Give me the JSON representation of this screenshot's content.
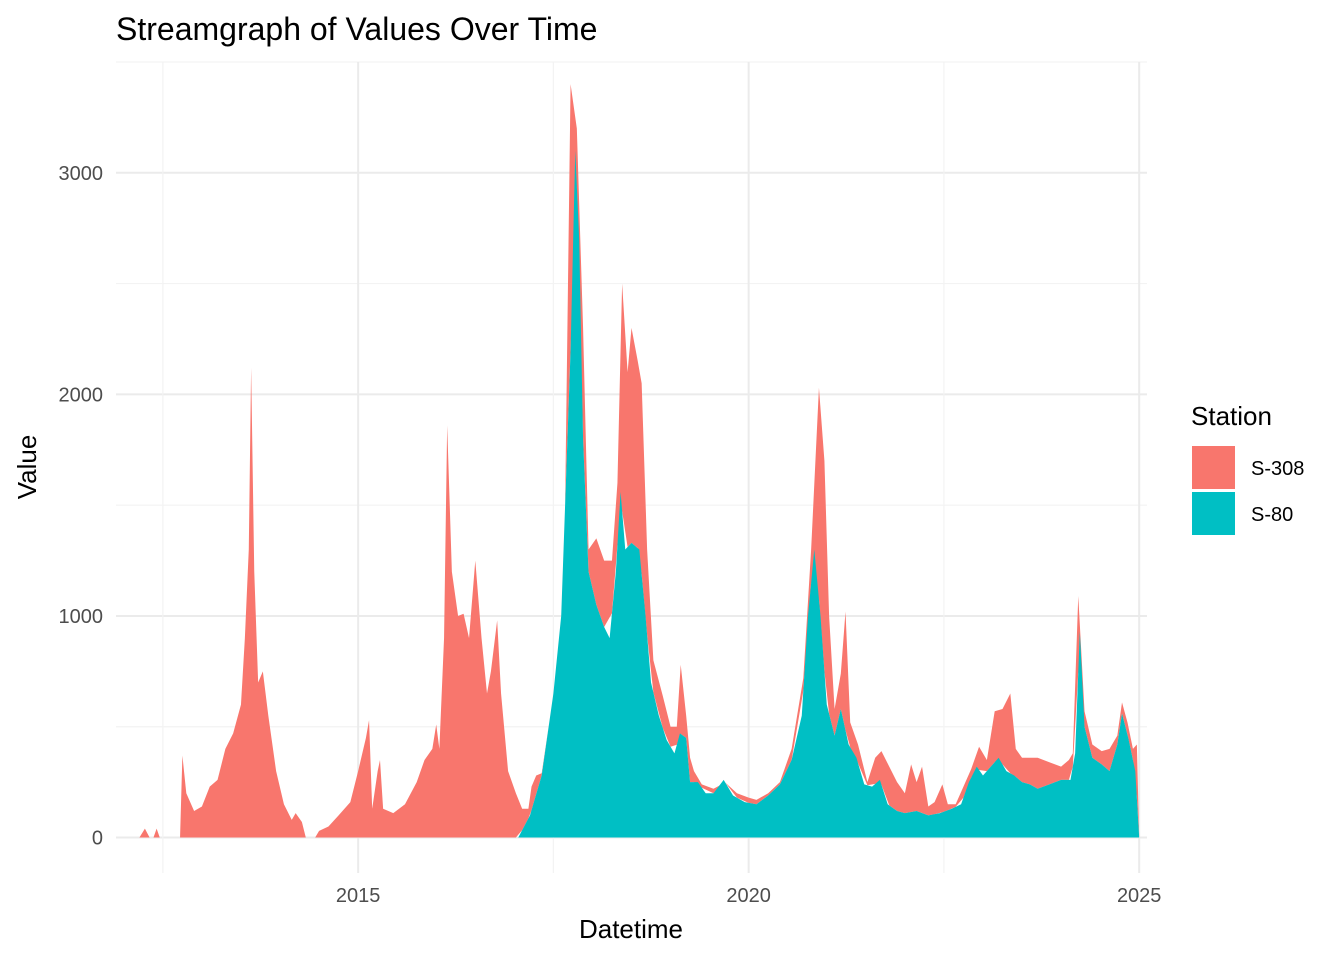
{
  "chart_data": {
    "type": "area",
    "stacked": true,
    "title": "Streamgraph of Values Over Time",
    "xlabel": "Datetime",
    "ylabel": "Value",
    "xlim": [
      2011.9,
      2025.1
    ],
    "ylim": [
      -160,
      3500
    ],
    "x_ticks": [
      2015,
      2020,
      2025
    ],
    "x_tick_labels": [
      "2015",
      "2020",
      "2025"
    ],
    "y_ticks": [
      0,
      1000,
      2000,
      3000
    ],
    "y_tick_labels": [
      "0",
      "1000",
      "2000",
      "3000"
    ],
    "grid": true,
    "legend": {
      "title": "Station",
      "position": "right"
    },
    "series": [
      {
        "name": "S-308",
        "color": "#F8766D",
        "values": [
          [
            2012.2,
            0
          ],
          [
            2012.27,
            40
          ],
          [
            2012.33,
            0
          ],
          [
            2012.38,
            0
          ],
          [
            2012.42,
            40
          ],
          [
            2012.46,
            0
          ],
          [
            2012.72,
            0
          ],
          [
            2012.75,
            370
          ],
          [
            2012.8,
            200
          ],
          [
            2012.9,
            120
          ],
          [
            2013.0,
            140
          ],
          [
            2013.1,
            230
          ],
          [
            2013.2,
            260
          ],
          [
            2013.3,
            400
          ],
          [
            2013.4,
            470
          ],
          [
            2013.5,
            600
          ],
          [
            2013.55,
            900
          ],
          [
            2013.6,
            1300
          ],
          [
            2013.63,
            2120
          ],
          [
            2013.67,
            1200
          ],
          [
            2013.72,
            700
          ],
          [
            2013.78,
            750
          ],
          [
            2013.85,
            550
          ],
          [
            2013.95,
            300
          ],
          [
            2014.05,
            150
          ],
          [
            2014.15,
            80
          ],
          [
            2014.2,
            110
          ],
          [
            2014.28,
            70
          ],
          [
            2014.33,
            0
          ],
          [
            2014.45,
            0
          ],
          [
            2014.5,
            30
          ],
          [
            2014.62,
            50
          ],
          [
            2014.75,
            100
          ],
          [
            2014.9,
            160
          ],
          [
            2015.0,
            300
          ],
          [
            2015.1,
            450
          ],
          [
            2015.14,
            530
          ],
          [
            2015.18,
            130
          ],
          [
            2015.25,
            300
          ],
          [
            2015.28,
            350
          ],
          [
            2015.32,
            130
          ],
          [
            2015.45,
            110
          ],
          [
            2015.6,
            150
          ],
          [
            2015.75,
            250
          ],
          [
            2015.85,
            350
          ],
          [
            2015.95,
            400
          ],
          [
            2016.0,
            510
          ],
          [
            2016.04,
            400
          ],
          [
            2016.1,
            900
          ],
          [
            2016.14,
            1860
          ],
          [
            2016.2,
            1200
          ],
          [
            2016.28,
            1000
          ],
          [
            2016.35,
            1010
          ],
          [
            2016.42,
            900
          ],
          [
            2016.5,
            1250
          ],
          [
            2016.58,
            900
          ],
          [
            2016.65,
            650
          ],
          [
            2016.7,
            750
          ],
          [
            2016.78,
            980
          ],
          [
            2016.83,
            650
          ],
          [
            2016.92,
            300
          ],
          [
            2017.02,
            200
          ],
          [
            2017.1,
            130
          ],
          [
            2017.18,
            130
          ],
          [
            2017.22,
            230
          ],
          [
            2017.28,
            280
          ],
          [
            2017.35,
            290
          ],
          [
            2017.45,
            380
          ],
          [
            2017.55,
            600
          ],
          [
            2017.65,
            1400
          ],
          [
            2017.72,
            3400
          ],
          [
            2017.8,
            3200
          ],
          [
            2017.88,
            2300
          ],
          [
            2017.95,
            1300
          ],
          [
            2018.05,
            1350
          ],
          [
            2018.15,
            1250
          ],
          [
            2018.25,
            1250
          ],
          [
            2018.32,
            1600
          ],
          [
            2018.38,
            2500
          ],
          [
            2018.45,
            2100
          ],
          [
            2018.5,
            2300
          ],
          [
            2018.58,
            2150
          ],
          [
            2018.63,
            2050
          ],
          [
            2018.7,
            1300
          ],
          [
            2018.78,
            800
          ],
          [
            2018.9,
            640
          ],
          [
            2019.0,
            500
          ],
          [
            2019.08,
            500
          ],
          [
            2019.13,
            780
          ],
          [
            2019.2,
            550
          ],
          [
            2019.25,
            360
          ],
          [
            2019.3,
            300
          ],
          [
            2019.4,
            240
          ],
          [
            2019.55,
            220
          ],
          [
            2019.7,
            240
          ],
          [
            2019.85,
            200
          ],
          [
            2020.0,
            180
          ],
          [
            2020.1,
            170
          ],
          [
            2020.25,
            200
          ],
          [
            2020.4,
            250
          ],
          [
            2020.55,
            400
          ],
          [
            2020.7,
            720
          ],
          [
            2020.8,
            1300
          ],
          [
            2020.9,
            2030
          ],
          [
            2020.97,
            1700
          ],
          [
            2021.03,
            1000
          ],
          [
            2021.1,
            580
          ],
          [
            2021.18,
            740
          ],
          [
            2021.24,
            1020
          ],
          [
            2021.3,
            520
          ],
          [
            2021.4,
            420
          ],
          [
            2021.52,
            250
          ],
          [
            2021.62,
            360
          ],
          [
            2021.7,
            390
          ],
          [
            2021.8,
            320
          ],
          [
            2021.9,
            250
          ],
          [
            2022.0,
            200
          ],
          [
            2022.08,
            330
          ],
          [
            2022.15,
            250
          ],
          [
            2022.22,
            320
          ],
          [
            2022.3,
            140
          ],
          [
            2022.38,
            160
          ],
          [
            2022.48,
            240
          ],
          [
            2022.55,
            150
          ],
          [
            2022.65,
            150
          ],
          [
            2022.75,
            230
          ],
          [
            2022.85,
            310
          ],
          [
            2022.95,
            410
          ],
          [
            2023.05,
            350
          ],
          [
            2023.15,
            570
          ],
          [
            2023.25,
            580
          ],
          [
            2023.35,
            650
          ],
          [
            2023.42,
            400
          ],
          [
            2023.5,
            360
          ],
          [
            2023.6,
            360
          ],
          [
            2023.7,
            360
          ],
          [
            2023.85,
            340
          ],
          [
            2024.0,
            320
          ],
          [
            2024.1,
            350
          ],
          [
            2024.15,
            380
          ],
          [
            2024.22,
            1090
          ],
          [
            2024.3,
            570
          ],
          [
            2024.4,
            420
          ],
          [
            2024.52,
            390
          ],
          [
            2024.62,
            400
          ],
          [
            2024.72,
            460
          ],
          [
            2024.78,
            610
          ],
          [
            2024.85,
            520
          ],
          [
            2024.92,
            400
          ],
          [
            2024.97,
            420
          ],
          [
            2025.0,
            0
          ]
        ]
      },
      {
        "name": "S-80",
        "color": "#00BFC4",
        "values": [
          [
            2017.05,
            0
          ],
          [
            2017.2,
            100
          ],
          [
            2017.35,
            280
          ],
          [
            2017.5,
            650
          ],
          [
            2017.6,
            1000
          ],
          [
            2017.66,
            1600
          ],
          [
            2017.72,
            2200
          ],
          [
            2017.78,
            3100
          ],
          [
            2017.83,
            2700
          ],
          [
            2017.88,
            1800
          ],
          [
            2017.95,
            1200
          ],
          [
            2018.05,
            1050
          ],
          [
            2018.15,
            950
          ],
          [
            2018.22,
            900
          ],
          [
            2018.3,
            1200
          ],
          [
            2018.36,
            1560
          ],
          [
            2018.42,
            1300
          ],
          [
            2018.5,
            1330
          ],
          [
            2018.6,
            1300
          ],
          [
            2018.68,
            1000
          ],
          [
            2018.75,
            700
          ],
          [
            2018.85,
            550
          ],
          [
            2018.95,
            440
          ],
          [
            2019.05,
            380
          ],
          [
            2019.12,
            470
          ],
          [
            2019.2,
            450
          ],
          [
            2019.25,
            250
          ],
          [
            2019.35,
            250
          ],
          [
            2019.45,
            200
          ],
          [
            2019.55,
            200
          ],
          [
            2019.68,
            260
          ],
          [
            2019.8,
            190
          ],
          [
            2019.95,
            160
          ],
          [
            2020.1,
            150
          ],
          [
            2020.25,
            190
          ],
          [
            2020.4,
            240
          ],
          [
            2020.55,
            350
          ],
          [
            2020.68,
            550
          ],
          [
            2020.76,
            1000
          ],
          [
            2020.84,
            1300
          ],
          [
            2020.92,
            1000
          ],
          [
            2021.0,
            600
          ],
          [
            2021.1,
            460
          ],
          [
            2021.18,
            580
          ],
          [
            2021.28,
            420
          ],
          [
            2021.38,
            360
          ],
          [
            2021.48,
            240
          ],
          [
            2021.58,
            230
          ],
          [
            2021.68,
            260
          ],
          [
            2021.78,
            150
          ],
          [
            2021.9,
            120
          ],
          [
            2022.0,
            110
          ],
          [
            2022.15,
            120
          ],
          [
            2022.3,
            100
          ],
          [
            2022.45,
            110
          ],
          [
            2022.6,
            130
          ],
          [
            2022.72,
            150
          ],
          [
            2022.82,
            250
          ],
          [
            2022.92,
            320
          ],
          [
            2023.0,
            280
          ],
          [
            2023.1,
            320
          ],
          [
            2023.2,
            360
          ],
          [
            2023.3,
            300
          ],
          [
            2023.4,
            280
          ],
          [
            2023.5,
            250
          ],
          [
            2023.6,
            240
          ],
          [
            2023.7,
            220
          ],
          [
            2023.85,
            240
          ],
          [
            2024.0,
            260
          ],
          [
            2024.12,
            260
          ],
          [
            2024.18,
            380
          ],
          [
            2024.24,
            930
          ],
          [
            2024.3,
            500
          ],
          [
            2024.4,
            360
          ],
          [
            2024.52,
            330
          ],
          [
            2024.62,
            300
          ],
          [
            2024.72,
            420
          ],
          [
            2024.78,
            560
          ],
          [
            2024.86,
            450
          ],
          [
            2024.95,
            300
          ],
          [
            2025.0,
            0
          ]
        ]
      }
    ]
  }
}
